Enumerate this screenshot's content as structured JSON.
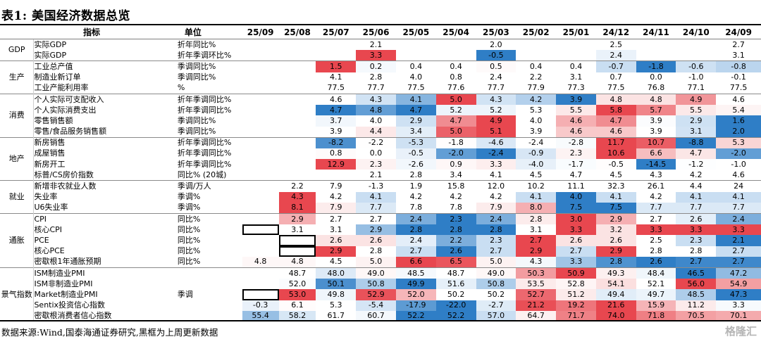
{
  "title": "表1:  美国经济数据总览",
  "header": {
    "indicator": "指标",
    "unit": "单位",
    "months": [
      "25/09",
      "25/08",
      "25/07",
      "25/06",
      "25/05",
      "25/04",
      "25/03",
      "25/02",
      "25/01",
      "24/12",
      "24/11",
      "24/10",
      "24/09"
    ]
  },
  "groups": [
    {
      "name": "GDP",
      "rows": [
        {
          "indicator": "实际GDP",
          "unit": "折年同比%",
          "values": [
            "",
            "",
            "",
            "2.1",
            "",
            "",
            "2.0",
            "",
            "",
            "2.5",
            "",
            "",
            "2.7"
          ]
        },
        {
          "indicator": "实际GDP",
          "unit": "折年季调环比%",
          "values": [
            "",
            "",
            "",
            "3.3",
            "",
            "",
            "-0.5",
            "",
            "",
            "2.4",
            "",
            "",
            "3.1"
          ]
        }
      ]
    },
    {
      "name": "生产",
      "rows": [
        {
          "indicator": "工业总产值",
          "unit": "季调同比%",
          "values": [
            "",
            "",
            "1.5",
            "0.2",
            "0.4",
            "0.4",
            "0.5",
            "0.4",
            "0.4",
            "-0.7",
            "-1.8",
            "-0.6",
            "-0.8"
          ]
        },
        {
          "indicator": "制造业新订单",
          "unit": "季调同比%",
          "values": [
            "",
            "",
            "4.1",
            "2.8",
            "4.0",
            "0.8",
            "2.4",
            "2.2",
            "3.1",
            "0.7",
            "0.0",
            "-1.0",
            "-0.1"
          ]
        },
        {
          "indicator": "工业产能利用率",
          "unit": "%",
          "values": [
            "",
            "",
            "77.5",
            "77.7",
            "77.5",
            "77.6",
            "77.7",
            "77.9",
            "77.3",
            "77.5",
            "76.8",
            "77.1",
            "77.5"
          ]
        }
      ]
    },
    {
      "name": "消费",
      "rows": [
        {
          "indicator": "个人实际可支配收入",
          "unit": "折年季调同比%",
          "values": [
            "",
            "",
            "4.6",
            "4.3",
            "4.1",
            "5.0",
            "4.3",
            "4.2",
            "3.9",
            "4.8",
            "4.8",
            "4.9",
            "4.6"
          ]
        },
        {
          "indicator": "个人实际消费支出",
          "unit": "折年季调同比%",
          "values": [
            "",
            "",
            "4.7",
            "4.8",
            "4.7",
            "5.2",
            "5.2",
            "5.3",
            "5.5",
            "5.8",
            "5.7",
            "5.5",
            "5.4"
          ]
        },
        {
          "indicator": "零售销售额",
          "unit": "季调同比%",
          "values": [
            "",
            "",
            "3.7",
            "4.0",
            "2.9",
            "4.7",
            "4.9",
            "4.0",
            "4.6",
            "4.7",
            "3.9",
            "2.9",
            "1.6"
          ]
        },
        {
          "indicator": "零售/食品服务销售额",
          "unit": "季调同比%",
          "values": [
            "",
            "",
            "3.9",
            "4.4",
            "3.4",
            "5.0",
            "5.1",
            "3.9",
            "4.6",
            "4.6",
            "3.9",
            "3.1",
            "2.0"
          ]
        }
      ]
    },
    {
      "name": "地产",
      "rows": [
        {
          "indicator": "新房销售",
          "unit": "折年季调同比%",
          "values": [
            "",
            "",
            "-8.2",
            "-2.2",
            "-5.3",
            "-1.8",
            "-4.6",
            "-2.4",
            "-2.8",
            "11.7",
            "10.7",
            "-8.8",
            "5.3"
          ]
        },
        {
          "indicator": "成屋销售",
          "unit": "折年季调同比%",
          "values": [
            "",
            "",
            "0.8",
            "0.0",
            "-0.5",
            "-2.0",
            "-2.4",
            "-0.9",
            "2.3",
            "10.6",
            "6.6",
            "4.7",
            "-2.0"
          ]
        },
        {
          "indicator": "新房开工",
          "unit": "折年季调同比%",
          "values": [
            "",
            "",
            "12.9",
            "2.3",
            "-2.6",
            "0.9",
            "3.3",
            "-4.0",
            "-1.7",
            "-0.5",
            "-14.5",
            "-1.2",
            "-1.0"
          ]
        },
        {
          "indicator": "标普/CS房价指数",
          "unit": "同比% (20城)",
          "values": [
            "",
            "",
            "",
            "2.1",
            "2.8",
            "3.4",
            "4.1",
            "4.5",
            "4.7",
            "4.5",
            "4.3",
            "4.2",
            "4.6"
          ]
        }
      ]
    },
    {
      "name": "就业",
      "rows": [
        {
          "indicator": "新增非农就业人数",
          "unit": "季调/万人",
          "values": [
            "",
            "2.2",
            "7.9",
            "-1.3",
            "1.9",
            "15.8",
            "12.0",
            "10.2",
            "11.1",
            "32.3",
            "26.1",
            "4.4",
            "24"
          ]
        },
        {
          "indicator": "失业率",
          "unit": "季调%",
          "values": [
            "",
            "4.3",
            "4.2",
            "4.1",
            "4.2",
            "4.2",
            "4.2",
            "4.1",
            "4.0",
            "4.1",
            "4.2",
            "4.1",
            "4.1"
          ]
        },
        {
          "indicator": "U6失业率",
          "unit": "季调%",
          "values": [
            "",
            "8.1",
            "7.9",
            "7.7",
            "7.8",
            "7.8",
            "7.9",
            "8.0",
            "7.5",
            "7.5",
            "7.7",
            "7.7",
            "7.7"
          ]
        }
      ]
    },
    {
      "name": "通胀",
      "rows": [
        {
          "indicator": "CPI",
          "unit": "同比%",
          "values": [
            "",
            "2.9",
            "2.7",
            "2.7",
            "2.4",
            "2.3",
            "2.4",
            "2.8",
            "3.0",
            "2.9",
            "2.7",
            "2.6",
            "2.4"
          ]
        },
        {
          "indicator": "核心CPI",
          "unit": "同比%",
          "values": [
            "",
            "3.1",
            "3.1",
            "2.9",
            "2.8",
            "2.8",
            "2.8",
            "3.1",
            "3.3",
            "3.2",
            "3.3",
            "3.3",
            "3.3"
          ]
        },
        {
          "indicator": "PCE",
          "unit": "同比%",
          "values": [
            "",
            "",
            "2.6",
            "2.6",
            "2.4",
            "2.2",
            "2.3",
            "2.7",
            "2.6",
            "2.6",
            "2.5",
            "2.3",
            "2.1"
          ]
        },
        {
          "indicator": "核心PCE",
          "unit": "同比%",
          "values": [
            "",
            "",
            "2.9",
            "2.8",
            "2.7",
            "2.6",
            "2.7",
            "2.9",
            "2.7",
            "2.9",
            "2.8",
            "2.8",
            "2.7"
          ]
        },
        {
          "indicator": "密歇根1年通胀预期",
          "unit": "同比%",
          "values": [
            "4.8",
            "4.8",
            "4.5",
            "5.0",
            "6.6",
            "6.5",
            "5.0",
            "4.3",
            "3.3",
            "2.8",
            "2.6",
            "2.7",
            "2.7"
          ]
        }
      ]
    },
    {
      "name": "景气指数",
      "rows": [
        {
          "indicator": "ISM制造业PMI",
          "unit": "",
          "values": [
            "",
            "48.7",
            "48.0",
            "49.0",
            "48.5",
            "48.7",
            "49.0",
            "50.3",
            "50.9",
            "49.3",
            "48.4",
            "46.5",
            "47.2"
          ]
        },
        {
          "indicator": "ISM非制造业PMI",
          "unit": "",
          "values": [
            "",
            "52.0",
            "50.1",
            "50.8",
            "49.9",
            "51.6",
            "50.8",
            "53.5",
            "52.8",
            "54.1",
            "52.1",
            "56.0",
            "54.9"
          ]
        },
        {
          "indicator": "Market制造业PMI",
          "unit": "季调",
          "values": [
            "",
            "53.0",
            "49.8",
            "52.9",
            "52.0",
            "50.2",
            "50.2",
            "52.7",
            "51.2",
            "49.4",
            "49.7",
            "48.5",
            "47.3"
          ]
        },
        {
          "indicator": "Sentix投资信心指数",
          "unit": "",
          "values": [
            "-0.3",
            "6.1",
            "5.3",
            "-5.4",
            "-17.9",
            "-22.0",
            "-2.7",
            "21.2",
            "19.2",
            "21.6",
            "15.9",
            "11.2",
            "3.3"
          ]
        },
        {
          "indicator": "密歇根消费者信心指数",
          "unit": "",
          "values": [
            "55.4",
            "58.2",
            "61.7",
            "60.7",
            "52.2",
            "52.2",
            "57.0",
            "64.7",
            "71.7",
            "74.0",
            "71.8",
            "70.5",
            "70.1"
          ]
        }
      ]
    }
  ],
  "heatmap_rows": [
    1,
    2,
    5,
    6,
    7,
    8,
    9,
    10,
    11,
    14,
    15,
    16,
    17,
    18,
    19,
    20,
    21,
    22,
    23,
    24,
    25,
    26,
    27,
    28
  ],
  "boxed_cells": [
    [
      17,
      0
    ],
    [
      18,
      1
    ],
    [
      19,
      1
    ],
    [
      23,
      0
    ],
    [
      27,
      0
    ]
  ],
  "source": "数据来源:Wind,国泰海通证券研究,黑框为上周更新数据",
  "logo_text": "格隆汇",
  "colors": {
    "red_strong": "#e8474f",
    "red_light": "#fbe3e3",
    "blue_strong": "#2f7ec6",
    "blue_light": "#c9def2",
    "white": "#ffffff"
  }
}
